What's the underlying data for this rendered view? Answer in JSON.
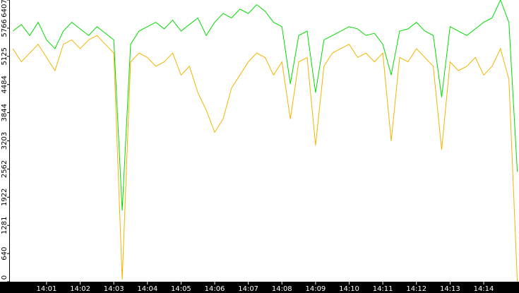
{
  "chart_data": {
    "type": "line",
    "x": [
      0,
      0.25,
      0.5,
      0.75,
      1,
      1.25,
      1.5,
      1.75,
      2,
      2.25,
      2.5,
      2.75,
      3,
      3.25,
      3.5,
      3.75,
      4,
      4.25,
      4.5,
      4.75,
      5,
      5.25,
      5.5,
      5.75,
      6,
      6.25,
      6.5,
      6.75,
      7,
      7.25,
      7.5,
      7.75,
      8,
      8.25,
      8.5,
      8.75,
      9,
      9.25,
      9.5,
      9.75,
      10,
      10.25,
      10.5,
      10.75,
      11,
      11.25,
      11.5,
      11.75,
      12,
      12.25,
      12.5,
      12.75,
      13,
      13.25,
      13.5,
      13.75,
      14,
      14.25,
      14.5,
      14.75,
      15
    ],
    "series": [
      {
        "color": "#00dd00",
        "values": [
          5700,
          5850,
          5600,
          5900,
          5500,
          5300,
          5700,
          5900,
          5750,
          5600,
          5800,
          5650,
          5500,
          1620,
          5400,
          5700,
          5800,
          5900,
          5750,
          5950,
          5700,
          5850,
          6000,
          5600,
          5900,
          6100,
          6000,
          6200,
          6100,
          6300,
          6150,
          5900,
          5800,
          4500,
          5600,
          5700,
          4300,
          5500,
          5600,
          5700,
          5800,
          5750,
          5600,
          5650,
          5400,
          4700,
          5700,
          5750,
          5900,
          5700,
          5600,
          4200,
          5800,
          5700,
          5600,
          5750,
          5900,
          6000,
          6407,
          5900,
          2500
        ]
      },
      {
        "color": "#f5b400",
        "values": [
          5300,
          5000,
          5200,
          5400,
          5100,
          4800,
          5400,
          5500,
          5300,
          5500,
          5600,
          5400,
          5200,
          50,
          5000,
          5200,
          5100,
          4900,
          5000,
          5200,
          4700,
          4900,
          4300,
          3900,
          3400,
          3700,
          4400,
          4700,
          5000,
          5200,
          5100,
          4700,
          5000,
          3700,
          5000,
          5100,
          3100,
          4900,
          5200,
          5300,
          5400,
          5100,
          5200,
          5000,
          5200,
          3200,
          5100,
          5000,
          5300,
          5100,
          4900,
          3000,
          5000,
          4800,
          4900,
          5100,
          4700,
          4900,
          5300,
          4600,
          0
        ]
      }
    ],
    "xlim": [
      -0.09,
      15.05
    ],
    "xticks": [
      {
        "value": 1,
        "label": "14:01"
      },
      {
        "value": 2,
        "label": "14:02"
      },
      {
        "value": 3,
        "label": "14:03"
      },
      {
        "value": 4,
        "label": "14:04"
      },
      {
        "value": 5,
        "label": "14:05"
      },
      {
        "value": 6,
        "label": "14:06"
      },
      {
        "value": 7,
        "label": "14:07"
      },
      {
        "value": 8,
        "label": "14:08"
      },
      {
        "value": 9,
        "label": "14:09"
      },
      {
        "value": 10,
        "label": "14:10"
      },
      {
        "value": 11,
        "label": "14:11"
      },
      {
        "value": 12,
        "label": "14:12"
      },
      {
        "value": 13,
        "label": "14:13"
      },
      {
        "value": 14,
        "label": "14:14"
      }
    ],
    "ylim": [
      0,
      6407
    ],
    "yticks": [
      0,
      640,
      1281,
      1922,
      2562,
      3203,
      3844,
      4484,
      5125,
      5766,
      6407
    ]
  }
}
